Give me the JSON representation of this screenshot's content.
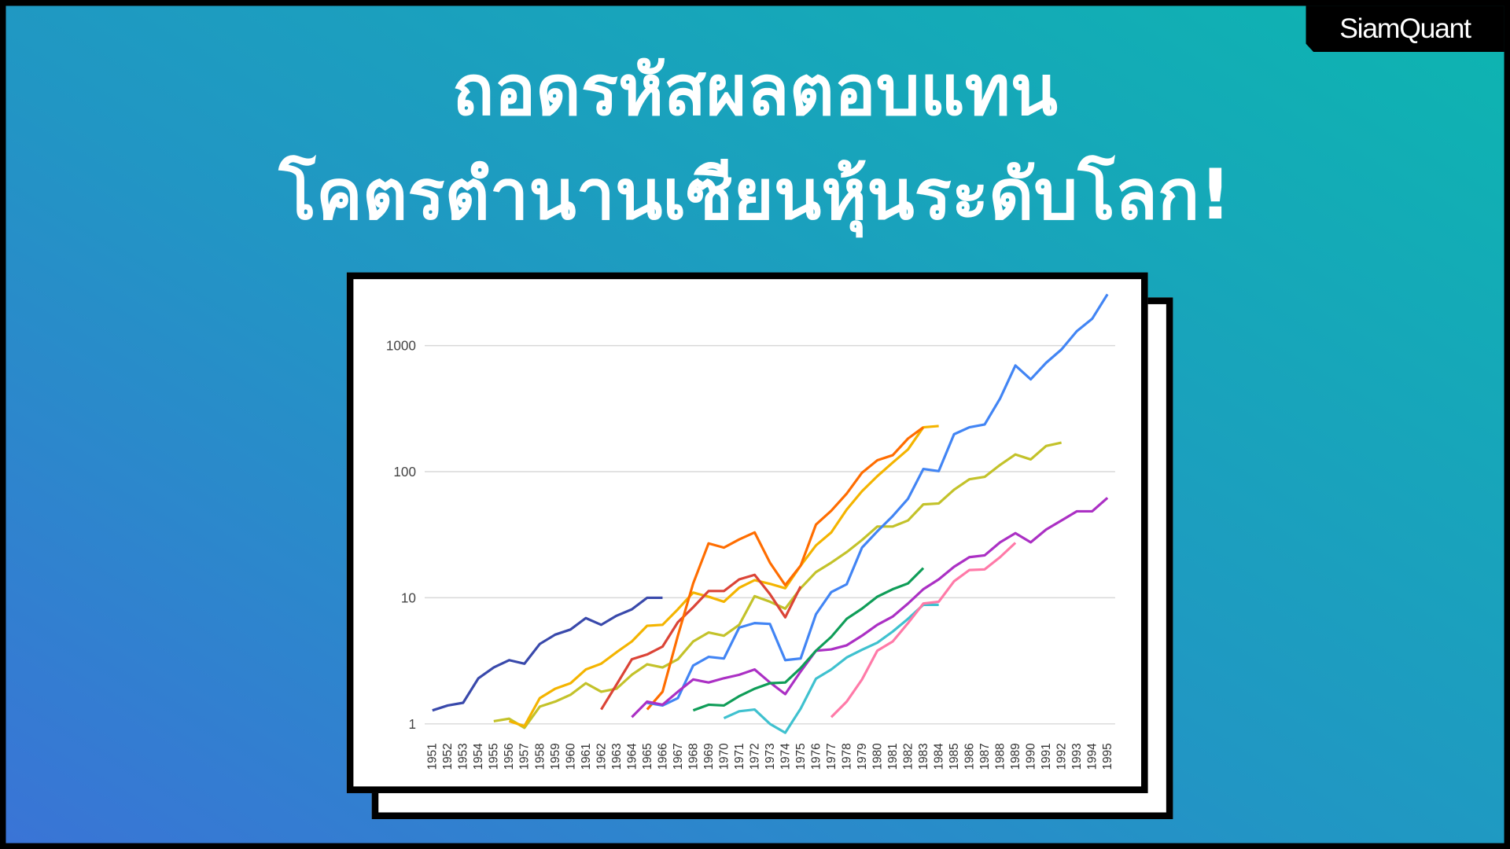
{
  "logo": "SiamQuant",
  "headline": {
    "line1": "ถอดรหัสผลตอบแทน",
    "line2": "โคตรตำนานเซียนหุ้นระดับโลก!"
  },
  "colors": {
    "background_start": "#3a74d6",
    "background_end": "#0db5b0"
  },
  "chart_data": {
    "type": "line",
    "y_scale": "log",
    "ylim": [
      0.8,
      3000
    ],
    "y_ticks": [
      "1",
      "10",
      "100",
      "1000"
    ],
    "grid": true,
    "legend": "none",
    "x_start": 1951,
    "x_ticks": [
      "1951",
      "1952",
      "1953",
      "1954",
      "1955",
      "1956",
      "1957",
      "1958",
      "1959",
      "1960",
      "1961",
      "1962",
      "1963",
      "1964",
      "1965",
      "1966",
      "1967",
      "1968",
      "1969",
      "1970",
      "1971",
      "1972",
      "1973",
      "1974",
      "1975",
      "1976",
      "1977",
      "1978",
      "1979",
      "1980",
      "1981",
      "1982",
      "1983",
      "1984",
      "1985",
      "1986",
      "1987",
      "1988",
      "1989",
      "1990",
      "1991",
      "1992",
      "1993",
      "1994",
      "1995"
    ],
    "series": [
      {
        "color": "#3949ab",
        "start": 1951,
        "values": [
          1.28,
          1.4,
          1.47,
          2.3,
          2.8,
          3.2,
          3.0,
          4.3,
          5.1,
          5.6,
          6.9,
          6.1,
          7.2,
          8.1,
          10,
          10
        ]
      },
      {
        "color": "#c3c22a",
        "start": 1955,
        "values": [
          1.05,
          1.1,
          0.93,
          1.37,
          1.5,
          1.7,
          2.1,
          1.8,
          1.9,
          2.45,
          2.97,
          2.8,
          3.25,
          4.5,
          5.3,
          5.0,
          6.1,
          10.3,
          9.3,
          8.2,
          11.9,
          16,
          19,
          23,
          28.7,
          36.7,
          36.7,
          41,
          55,
          56,
          72,
          87,
          91,
          113,
          137,
          125,
          160,
          170
        ]
      },
      {
        "color": "#f4b400",
        "start": 1956,
        "values": [
          1.05,
          0.96,
          1.6,
          1.9,
          2.1,
          2.7,
          3.0,
          3.7,
          4.5,
          6.0,
          6.1,
          8.1,
          11,
          10.2,
          9.3,
          12,
          13.8,
          12.9,
          11.9,
          18,
          26,
          33,
          50,
          70,
          92,
          118,
          150,
          225,
          230
        ]
      },
      {
        "color": "#db4437",
        "start": 1962,
        "values": [
          1.3,
          2.05,
          3.25,
          3.55,
          4.1,
          6.4,
          8.4,
          11.3,
          11.3,
          14,
          15.2,
          10.7,
          7.0,
          12.3
        ]
      },
      {
        "color": "#ff6d00",
        "start": 1965,
        "values": [
          1.3,
          1.8,
          5,
          13,
          27,
          25,
          29,
          33,
          19,
          12.6,
          18,
          38,
          49,
          67,
          98,
          123,
          135,
          183,
          225
        ]
      },
      {
        "color": "#4285f4",
        "start": 1965,
        "values": [
          1.47,
          1.4,
          1.6,
          2.9,
          3.4,
          3.3,
          5.8,
          6.3,
          6.2,
          3.2,
          3.3,
          7.4,
          11.1,
          12.8,
          25,
          33.6,
          44.5,
          61,
          105,
          101,
          198,
          225,
          237,
          380,
          695,
          540,
          730,
          930,
          1300,
          1630,
          2550
        ]
      },
      {
        "color": "#ab30c4",
        "start": 1964,
        "values": [
          1.13,
          1.5,
          1.42,
          1.8,
          2.25,
          2.13,
          2.3,
          2.45,
          2.7,
          2.13,
          1.72,
          2.6,
          3.8,
          3.9,
          4.2,
          5.0,
          6.1,
          7.1,
          9.0,
          11.7,
          14,
          17.6,
          21,
          21.7,
          27.5,
          32.5,
          27.5,
          34.8,
          41,
          48.5,
          48.5,
          62
        ]
      },
      {
        "color": "#0f9d58",
        "start": 1968,
        "values": [
          1.28,
          1.42,
          1.4,
          1.66,
          1.9,
          2.1,
          2.13,
          2.77,
          3.8,
          4.9,
          6.8,
          8.2,
          10.2,
          11.7,
          13,
          17.2
        ]
      },
      {
        "color": "#3fc1cf",
        "start": 1970,
        "values": [
          1.11,
          1.26,
          1.3,
          1.0,
          0.85,
          1.32,
          2.28,
          2.7,
          3.36,
          3.87,
          4.4,
          5.4,
          6.8,
          8.8,
          8.8
        ]
      },
      {
        "color": "#ff7aa8",
        "start": 1977,
        "values": [
          1.13,
          1.5,
          2.25,
          3.8,
          4.5,
          6.3,
          9.0,
          9.3,
          13.5,
          16.6,
          16.8,
          21,
          27.3
        ]
      }
    ]
  }
}
